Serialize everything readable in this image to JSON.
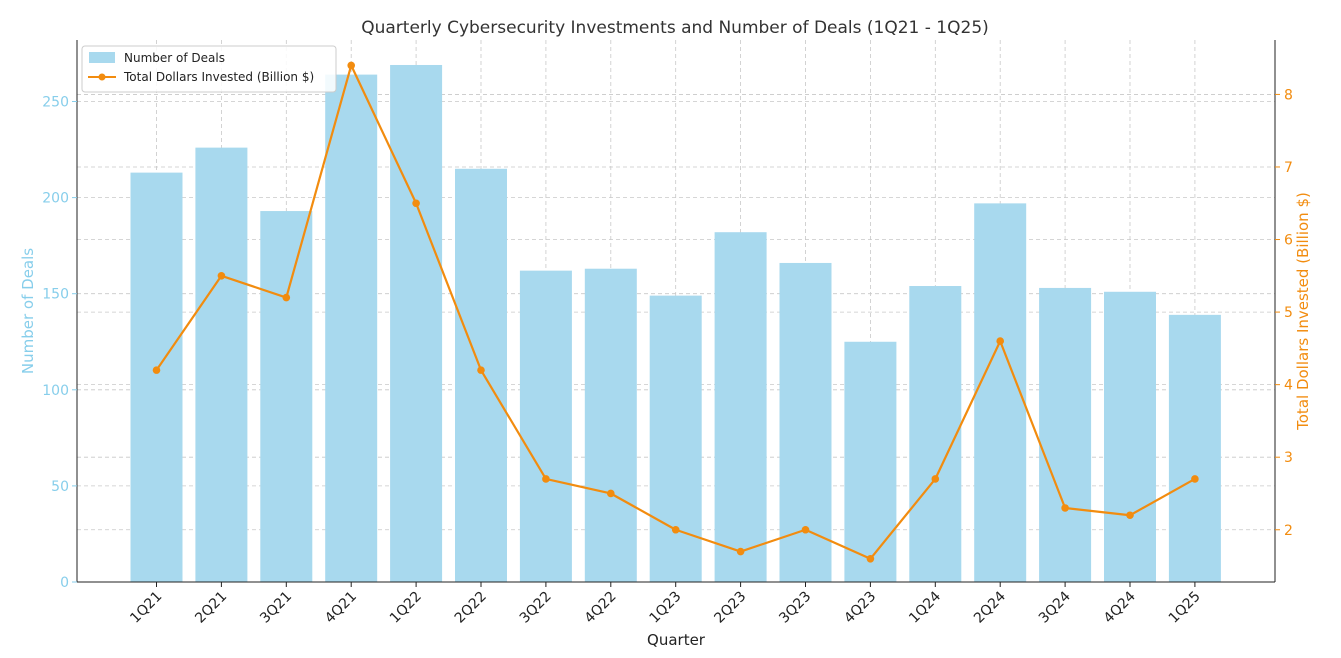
{
  "chart_data": {
    "type": "bar",
    "title": "Quarterly Cybersecurity Investments and Number of Deals (1Q21 - 1Q25)",
    "xlabel": "Quarter",
    "ylabel": "Number of Deals",
    "ylabel_right": "Total Dollars Invested (Billion $)",
    "categories": [
      "1Q21",
      "2Q21",
      "3Q21",
      "4Q21",
      "1Q22",
      "2Q22",
      "3Q22",
      "4Q22",
      "1Q23",
      "2Q23",
      "3Q23",
      "4Q23",
      "1Q24",
      "2Q24",
      "3Q24",
      "4Q24",
      "1Q25"
    ],
    "ylim": [
      0,
      282
    ],
    "ylim_right": [
      1.28,
      8.75
    ],
    "yticks": [
      0,
      50,
      100,
      150,
      200,
      250
    ],
    "yticks_right": [
      2,
      3,
      4,
      5,
      6,
      7,
      8
    ],
    "grid": true,
    "legend_position": "top-left",
    "series": [
      {
        "name": "Number of Deals",
        "type": "bar",
        "axis": "left",
        "color": "#a8d9ee",
        "values": [
          213,
          226,
          193,
          264,
          269,
          215,
          162,
          163,
          149,
          182,
          166,
          125,
          154,
          197,
          153,
          151,
          139
        ]
      },
      {
        "name": "Total Dollars Invested (Billion $)",
        "type": "line",
        "axis": "right",
        "color": "#f28c0f",
        "values": [
          4.2,
          5.5,
          5.2,
          8.4,
          6.5,
          4.2,
          2.7,
          2.5,
          2.0,
          1.7,
          2.0,
          1.6,
          2.7,
          4.6,
          2.3,
          2.2,
          2.7
        ]
      }
    ],
    "colors": {
      "left_axis": "#87ceeb",
      "right_axis": "#f28c0f"
    }
  }
}
